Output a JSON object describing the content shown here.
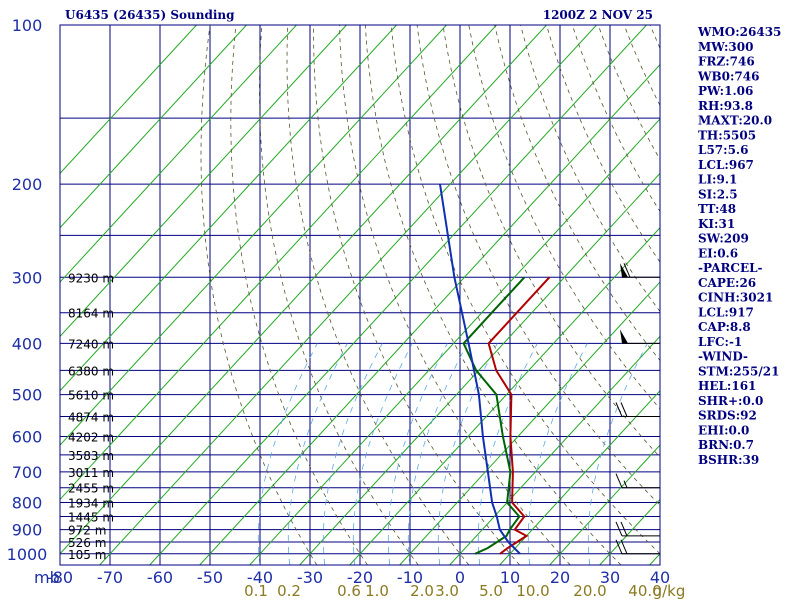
{
  "header": {
    "station_title": "U6435 (26435) Sounding",
    "time_label": "1200Z  2 NOV 25"
  },
  "chart_data": {
    "type": "line",
    "title": "U6435 (26435) Sounding",
    "ylabel": "mb",
    "y_scale": "log",
    "ylim": [
      1050,
      100
    ],
    "xlim": [
      -80,
      40
    ],
    "pressure_ticks": [
      100,
      200,
      300,
      400,
      500,
      600,
      700,
      800,
      900,
      1000
    ],
    "temperature_ticks": [
      -80,
      -70,
      -60,
      -50,
      -40,
      -30,
      -20,
      -10,
      0,
      10,
      20,
      30,
      40
    ],
    "temperature_tick_labels": [
      "-80",
      "-70",
      "-60",
      "-50",
      "-40",
      "-30",
      "-20",
      "-10",
      "0",
      "10",
      "20",
      "30",
      "40"
    ],
    "mixing_ratio_labels": [
      "0.1",
      "0.2",
      "0.6",
      "1.0",
      "2.0",
      "3.0",
      "5.0",
      "10.0",
      "20.0",
      "40.0",
      "g/kg"
    ],
    "height_labels": [
      {
        "p": 300,
        "text": "9230 m"
      },
      {
        "p": 350,
        "text": "8164 m"
      },
      {
        "p": 400,
        "text": "7240 m"
      },
      {
        "p": 450,
        "text": "6380 m"
      },
      {
        "p": 500,
        "text": "5610 m"
      },
      {
        "p": 550,
        "text": "4874 m"
      },
      {
        "p": 600,
        "text": "4202 m"
      },
      {
        "p": 650,
        "text": "3583 m"
      },
      {
        "p": 700,
        "text": "3011 m"
      },
      {
        "p": 750,
        "text": "2455 m"
      },
      {
        "p": 800,
        "text": "1934 m"
      },
      {
        "p": 850,
        "text": "1445 m"
      },
      {
        "p": 900,
        "text": "972 m"
      },
      {
        "p": 950,
        "text": "526 m"
      },
      {
        "p": 1000,
        "text": "105 m"
      }
    ],
    "series": [
      {
        "color": "#b00000",
        "points": [
          [
            1000,
            8.0
          ],
          [
            975,
            8.5
          ],
          [
            925,
            10.0
          ],
          [
            900,
            6.5
          ],
          [
            850,
            6.0
          ],
          [
            800,
            1.0
          ],
          [
            700,
            -4.5
          ],
          [
            600,
            -11.5
          ],
          [
            500,
            -19.0
          ],
          [
            450,
            -26.5
          ],
          [
            400,
            -33.0
          ],
          [
            350,
            -33.0
          ],
          [
            300,
            -33.0
          ]
        ]
      },
      {
        "color": "#006400",
        "points": [
          [
            1000,
            3.0
          ],
          [
            975,
            4.5
          ],
          [
            925,
            6.0
          ],
          [
            900,
            5.5
          ],
          [
            850,
            5.0
          ],
          [
            800,
            0.0
          ],
          [
            700,
            -5.0
          ],
          [
            600,
            -13.0
          ],
          [
            500,
            -22.0
          ],
          [
            450,
            -30.5
          ],
          [
            400,
            -38.0
          ],
          [
            350,
            -38.0
          ],
          [
            300,
            -38.0
          ]
        ]
      },
      {
        "color": "#1030b0",
        "points": [
          [
            1000,
            12.0
          ],
          [
            950,
            7.5
          ],
          [
            900,
            3.5
          ],
          [
            850,
            0.5
          ],
          [
            800,
            -3.0
          ],
          [
            700,
            -9.5
          ],
          [
            600,
            -17.0
          ],
          [
            500,
            -25.5
          ],
          [
            400,
            -37.0
          ],
          [
            300,
            -52.0
          ],
          [
            250,
            -61.0
          ],
          [
            200,
            -72.0
          ]
        ]
      }
    ],
    "wind_barbs": [
      {
        "p": 300,
        "dir": 250,
        "speed": 60
      },
      {
        "p": 400,
        "dir": 260,
        "speed": 50
      },
      {
        "p": 550,
        "dir": 250,
        "speed": 20
      },
      {
        "p": 750,
        "dir": 240,
        "speed": 15
      },
      {
        "p": 925,
        "dir": 250,
        "speed": 20
      },
      {
        "p": 1000,
        "dir": 250,
        "speed": 20
      }
    ]
  },
  "indices": [
    "WMO:26435",
    "MW:300",
    "FRZ:746",
    "WB0:746",
    "PW:1.06",
    "RH:93.8",
    "MAXT:20.0",
    "TH:5505",
    "L57:5.6",
    "LCL:967",
    "LI:9.1",
    "SI:2.5",
    "TT:48",
    "KI:31",
    "SW:209",
    "EI:0.6",
    "-PARCEL-",
    "CAPE:26",
    "CINH:3021",
    "LCL:917",
    "CAP:8.8",
    "LFC:-1",
    "-WIND-",
    "STM:255/21",
    "HEL:161",
    "SHR+:0.0",
    "SRDS:92",
    "EHI:0.0",
    "BRN:0.7",
    "BSHR:39"
  ]
}
